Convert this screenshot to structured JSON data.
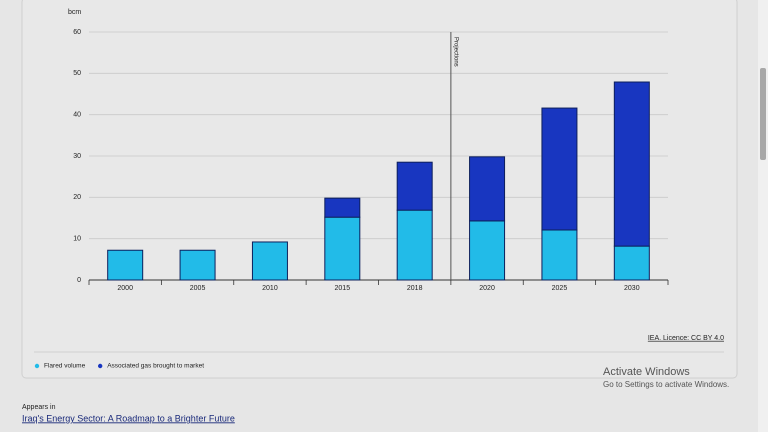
{
  "chart_data": {
    "type": "bar",
    "stacked": true,
    "y_unit": "bcm",
    "categories": [
      "2000",
      "2005",
      "2010",
      "2015",
      "2018",
      "2020",
      "2025",
      "2030"
    ],
    "series": [
      {
        "name": "Flared volume",
        "color": "#22bbe8",
        "values": [
          7.2,
          7.2,
          9.2,
          15.2,
          16.9,
          14.3,
          12.1,
          8.2
        ]
      },
      {
        "name": "Associated gas brought to market",
        "color": "#1836c0",
        "values": [
          0,
          0,
          0,
          4.6,
          11.6,
          15.5,
          29.5,
          39.7
        ]
      }
    ],
    "ylim": [
      0,
      60
    ],
    "yticks": [
      0,
      10,
      20,
      30,
      40,
      50,
      60
    ],
    "grid": true,
    "projection_label": "Projections",
    "source": "IEA. Licence: CC BY 4.0"
  },
  "appears_in": {
    "label": "Appears in",
    "link": "Iraq's Energy Sector: A Roadmap to a Brighter Future"
  },
  "watermark": {
    "title": "Activate Windows",
    "subtitle": "Go to Settings to activate Windows."
  }
}
